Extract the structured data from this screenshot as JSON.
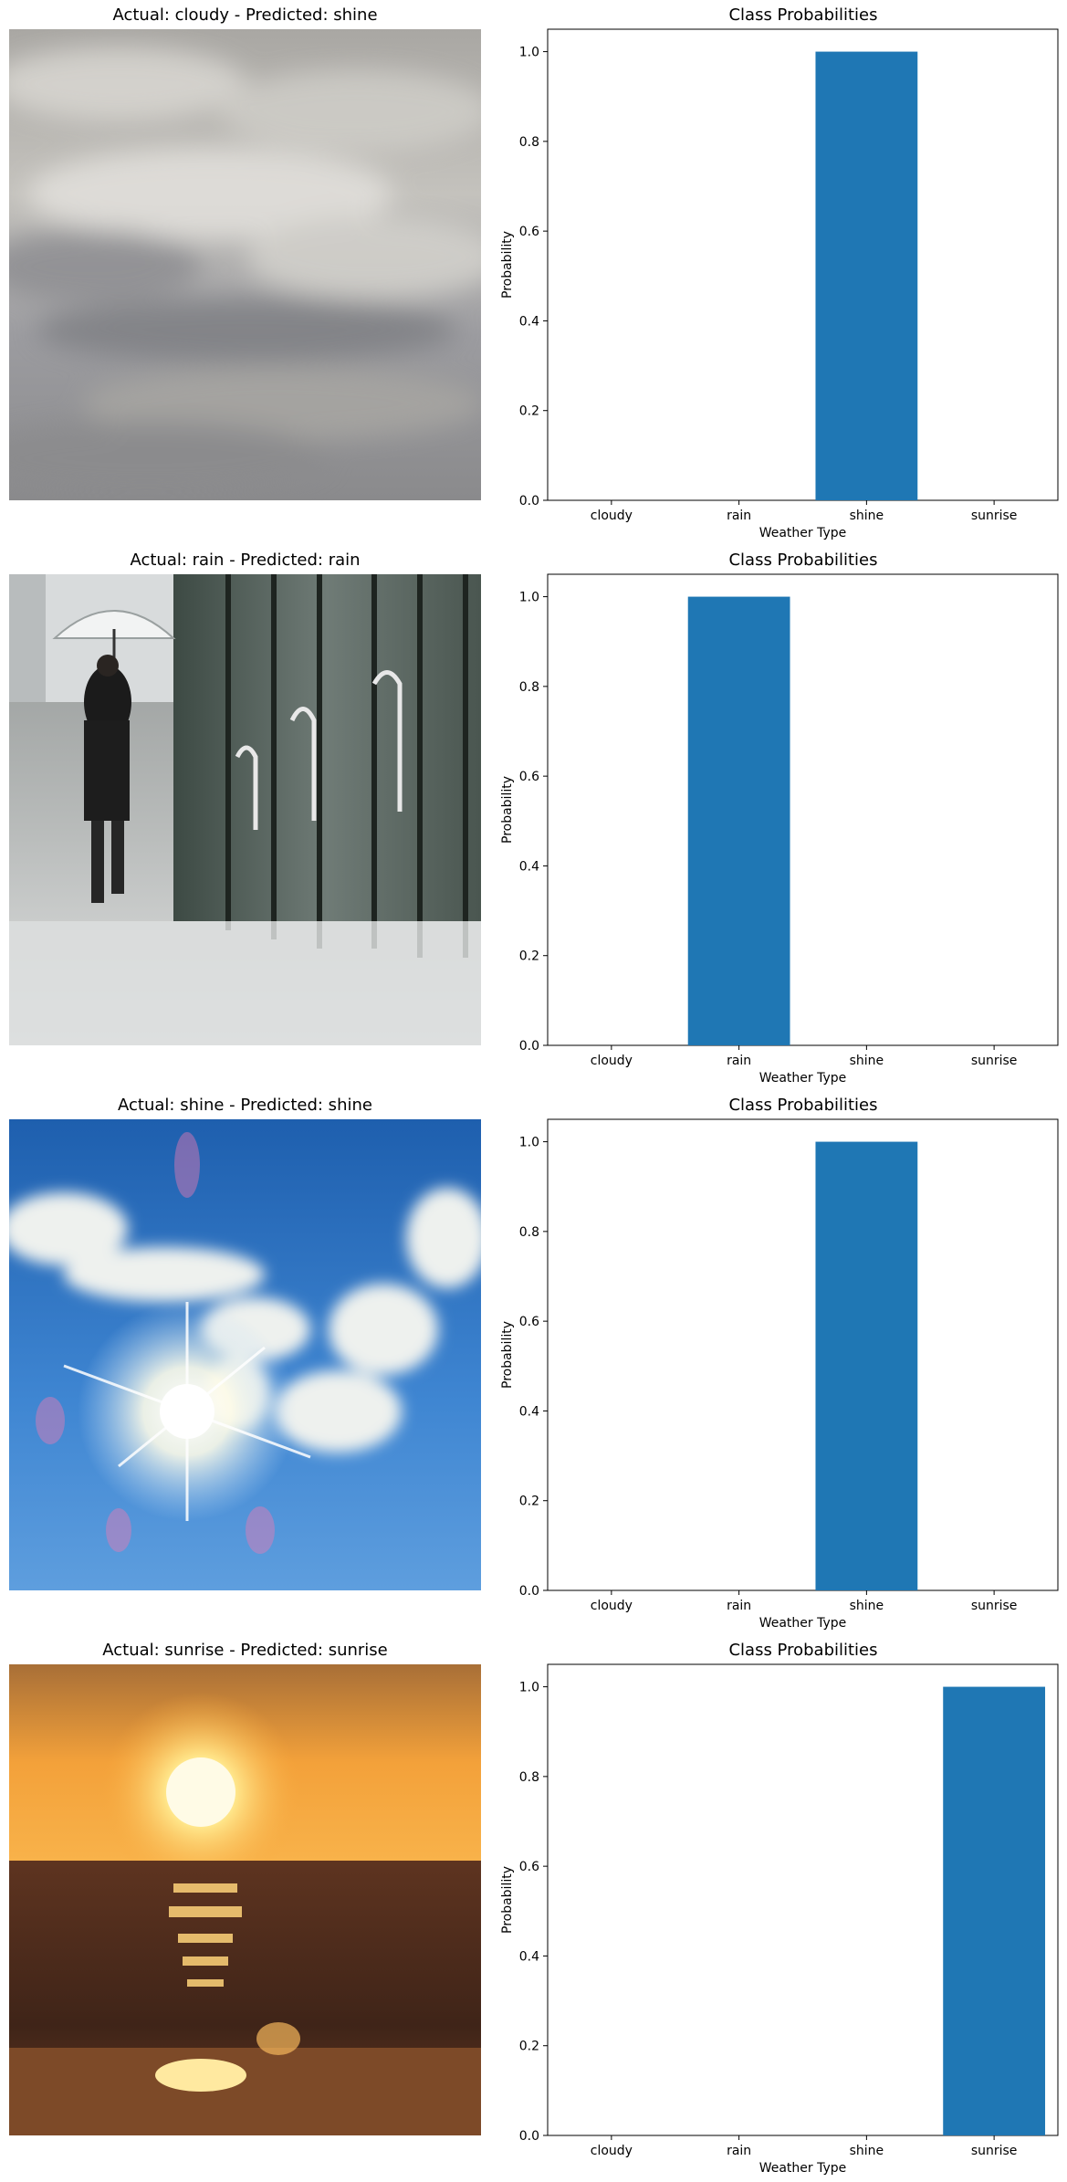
{
  "panels": [
    {
      "image_title": "Actual: cloudy - Predicted: shine",
      "image_scene": "cloudy-sky",
      "chart_title": "Class Probabilities"
    },
    {
      "image_title": "Actual: rain - Predicted: rain",
      "image_scene": "rainy-street-umbrella",
      "chart_title": "Class Probabilities"
    },
    {
      "image_title": "Actual: shine - Predicted: shine",
      "image_scene": "sunny-sky-clouds",
      "chart_title": "Class Probabilities"
    },
    {
      "image_title": "Actual: sunrise - Predicted: sunrise",
      "image_scene": "sunrise-over-sea",
      "chart_title": "Class Probabilities"
    }
  ],
  "chart_data": [
    {
      "type": "bar",
      "title": "Class Probabilities",
      "xlabel": "Weather Type",
      "ylabel": "Probability",
      "categories": [
        "cloudy",
        "rain",
        "shine",
        "sunrise"
      ],
      "values": [
        0,
        0,
        1.0,
        0
      ],
      "ylim": [
        0,
        1.05
      ],
      "yticks": [
        "0.0",
        "0.2",
        "0.4",
        "0.6",
        "0.8",
        "1.0"
      ],
      "grid": false,
      "color": "#1f77b4"
    },
    {
      "type": "bar",
      "title": "Class Probabilities",
      "xlabel": "Weather Type",
      "ylabel": "Probability",
      "categories": [
        "cloudy",
        "rain",
        "shine",
        "sunrise"
      ],
      "values": [
        0,
        1.0,
        0,
        0
      ],
      "ylim": [
        0,
        1.05
      ],
      "yticks": [
        "0.0",
        "0.2",
        "0.4",
        "0.6",
        "0.8",
        "1.0"
      ],
      "grid": false,
      "color": "#1f77b4"
    },
    {
      "type": "bar",
      "title": "Class Probabilities",
      "xlabel": "Weather Type",
      "ylabel": "Probability",
      "categories": [
        "cloudy",
        "rain",
        "shine",
        "sunrise"
      ],
      "values": [
        0,
        0,
        1.0,
        0
      ],
      "ylim": [
        0,
        1.05
      ],
      "yticks": [
        "0.0",
        "0.2",
        "0.4",
        "0.6",
        "0.8",
        "1.0"
      ],
      "grid": false,
      "color": "#1f77b4"
    },
    {
      "type": "bar",
      "title": "Class Probabilities",
      "xlabel": "Weather Type",
      "ylabel": "Probability",
      "categories": [
        "cloudy",
        "rain",
        "shine",
        "sunrise"
      ],
      "values": [
        0,
        0,
        0,
        1.0
      ],
      "ylim": [
        0,
        1.05
      ],
      "yticks": [
        "0.0",
        "0.2",
        "0.4",
        "0.6",
        "0.8",
        "1.0"
      ],
      "grid": false,
      "color": "#1f77b4"
    }
  ]
}
